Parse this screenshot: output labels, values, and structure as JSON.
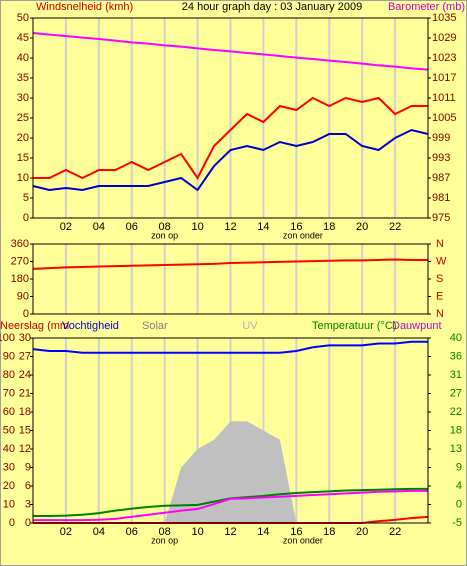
{
  "chart_data": [
    {
      "type": "line",
      "title": "24 hour graph day : 03 January 2009",
      "y_label": "Windsnelheid (kmh)",
      "y2_label": "Barometer (mb)",
      "x": [
        0,
        1,
        2,
        3,
        4,
        5,
        6,
        7,
        8,
        9,
        10,
        11,
        12,
        13,
        14,
        15,
        16,
        17,
        18,
        19,
        20,
        21,
        22,
        23,
        24
      ],
      "xlim": [
        0,
        24
      ],
      "xticks": [
        {
          "value": 2,
          "label": "02"
        },
        {
          "value": 4,
          "label": "04"
        },
        {
          "value": 6,
          "label": "06"
        },
        {
          "value": 8,
          "label": "08"
        },
        {
          "value": 10,
          "label": "10"
        },
        12,
        14,
        16,
        18,
        20,
        22
      ],
      "ylim": [
        0,
        50
      ],
      "yticks": [
        0,
        5,
        10,
        15,
        20,
        25,
        30,
        35,
        40,
        45,
        50
      ],
      "y2lim": [
        975,
        1035
      ],
      "y2ticks": [
        975,
        981,
        987,
        993,
        999,
        1005,
        1011,
        1017,
        1023,
        1029,
        1035
      ],
      "annotations": [
        {
          "text": "zon op",
          "x": 8.0
        },
        {
          "text": "zon onder",
          "x": 16.4
        }
      ],
      "series": [
        {
          "color": "#ff0000",
          "axis": "y",
          "values": [
            10,
            10,
            12,
            10,
            12,
            12,
            14,
            12,
            14,
            16,
            10,
            18,
            22,
            26,
            24,
            28,
            27,
            30,
            28,
            30,
            29,
            30,
            26,
            28,
            28
          ]
        },
        {
          "color": "#0000cc",
          "axis": "y",
          "values": [
            8,
            7,
            7.5,
            7,
            8,
            8,
            8,
            8,
            9,
            10,
            7,
            13,
            17,
            18,
            17,
            19,
            18,
            19,
            21,
            21,
            18,
            17,
            20,
            22,
            21
          ]
        },
        {
          "color": "#ff00ff",
          "axis": "y2",
          "values": [
            1030.5,
            1030,
            1029.6,
            1029.1,
            1028.7,
            1028.2,
            1027.7,
            1027.3,
            1026.8,
            1026.4,
            1025.9,
            1025.4,
            1025,
            1024.5,
            1024.1,
            1023.6,
            1023.1,
            1022.7,
            1022.2,
            1021.8,
            1021.3,
            1020.8,
            1020.4,
            1019.9,
            1019.5
          ]
        }
      ]
    },
    {
      "type": "line",
      "x": [
        0,
        1,
        2,
        3,
        4,
        5,
        6,
        7,
        8,
        9,
        10,
        11,
        12,
        13,
        14,
        15,
        16,
        17,
        18,
        19,
        20,
        21,
        22,
        23,
        24
      ],
      "xlim": [
        0,
        24
      ],
      "xgrid": [
        2,
        4,
        6,
        8,
        10,
        12,
        14,
        16,
        18,
        20,
        22
      ],
      "ylim": [
        0,
        360
      ],
      "yticks": [
        0,
        90,
        180,
        270,
        360
      ],
      "y2lim": [
        0,
        360
      ],
      "y2ticks": [
        {
          "value": 0,
          "label": "N"
        },
        {
          "value": 90,
          "label": "E"
        },
        {
          "value": 180,
          "label": "S"
        },
        {
          "value": 270,
          "label": "W"
        },
        {
          "value": 360,
          "label": "N"
        }
      ],
      "series": [
        {
          "color": "#ff0000",
          "axis": "y",
          "values": [
            232,
            236,
            240,
            242,
            244,
            246,
            248,
            250,
            252,
            254,
            256,
            258,
            262,
            264,
            266,
            268,
            270,
            272,
            274,
            276,
            276,
            278,
            280,
            278,
            278
          ]
        }
      ]
    },
    {
      "type": "line",
      "uv_label": "UV",
      "x": [
        0,
        1,
        2,
        3,
        4,
        5,
        6,
        7,
        8,
        9,
        10,
        11,
        12,
        13,
        14,
        15,
        16,
        17,
        18,
        19,
        20,
        21,
        22,
        23,
        24
      ],
      "xlim": [
        0,
        24
      ],
      "xticks": [
        {
          "value": 2,
          "label": "02"
        },
        {
          "value": 4,
          "label": "04"
        },
        {
          "value": 6,
          "label": "06"
        },
        {
          "value": 8,
          "label": "08"
        },
        {
          "value": 10,
          "label": "10"
        },
        12,
        14,
        16,
        18,
        20,
        22
      ],
      "ylim": [
        0,
        100
      ],
      "yticks": [
        0,
        10,
        20,
        30,
        40,
        50,
        60,
        70,
        80,
        90,
        100
      ],
      "y3lim": [
        0,
        30
      ],
      "y3ticks": [
        0,
        3,
        6,
        9,
        12,
        15,
        18,
        21,
        24,
        27,
        30
      ],
      "y2lim": [
        -5,
        40
      ],
      "y2ticks": [
        -5,
        {
          "value": -0.5,
          "label": "0"
        },
        4,
        {
          "value": 8.5,
          "label": "9"
        },
        13,
        {
          "value": 17.5,
          "label": "18"
        },
        22,
        {
          "value": 26.5,
          "label": "27"
        },
        31,
        {
          "value": 35.5,
          "label": "36"
        },
        40
      ],
      "annotations": [
        {
          "text": "zon op",
          "x": 8.0
        },
        {
          "text": "zon onder",
          "x": 16.4
        }
      ],
      "series": [
        {
          "name": "Solar",
          "color": "#c0c0c0",
          "axis": "y",
          "area": true,
          "values": [
            0,
            0,
            0,
            0,
            0,
            0,
            0,
            0,
            0,
            30,
            40,
            45,
            55,
            55,
            50,
            45,
            0,
            0,
            0,
            0,
            0,
            0,
            0,
            0,
            0
          ]
        },
        {
          "name": "Neerslag (mm",
          "color": "#ff0000",
          "axis": "y3",
          "values": [
            0,
            0,
            0,
            0,
            0,
            0,
            0,
            0,
            0,
            0,
            0,
            0,
            0,
            0,
            0,
            0,
            0,
            0,
            0,
            0,
            0,
            0.3,
            0.5,
            0.8,
            1.0
          ]
        },
        {
          "name": "Vochtigheid",
          "color": "#0000ff",
          "axis": "y",
          "values": [
            94,
            93,
            93,
            92,
            92,
            92,
            92,
            92,
            92,
            92,
            92,
            92,
            92,
            92,
            92,
            92,
            93,
            95,
            96,
            96,
            96,
            97,
            97,
            98,
            98
          ]
        },
        {
          "name": "Temperatuur (°C)",
          "color": "#008000",
          "axis": "y2",
          "values": [
            -3.3,
            -3.3,
            -3.2,
            -3.0,
            -2.6,
            -2.0,
            -1.5,
            -1.1,
            -0.8,
            -0.7,
            -0.6,
            0.2,
            1.0,
            1.3,
            1.6,
            2.0,
            2.3,
            2.5,
            2.7,
            2.9,
            3.0,
            3.1,
            3.2,
            3.3,
            3.3
          ]
        },
        {
          "name": "Dauwpunt",
          "color": "#ff00ff",
          "axis": "y2",
          "values": [
            -4.3,
            -4.3,
            -4.3,
            -4.3,
            -4.2,
            -4.0,
            -3.5,
            -3.0,
            -2.5,
            -2.0,
            -1.6,
            -0.4,
            0.9,
            1.0,
            1.2,
            1.4,
            1.6,
            1.8,
            2.0,
            2.2,
            2.4,
            2.6,
            2.7,
            2.8,
            2.8
          ]
        }
      ]
    }
  ]
}
